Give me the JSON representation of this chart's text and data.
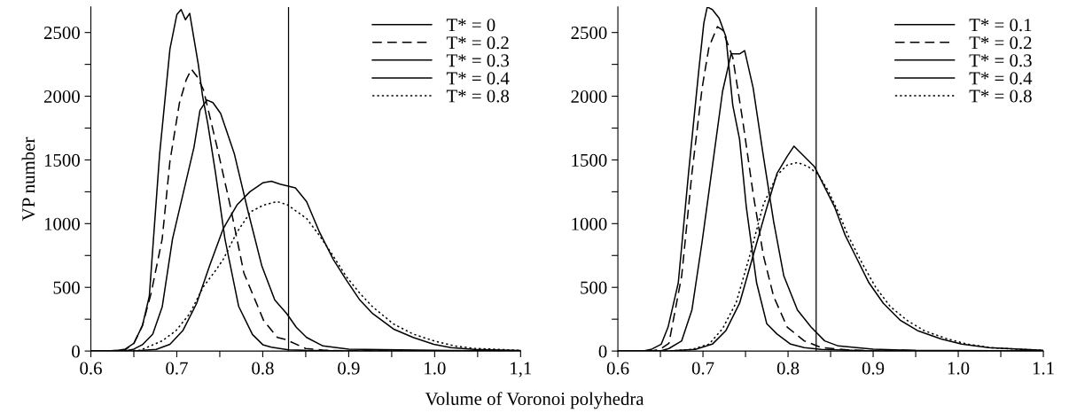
{
  "chart_data": [
    {
      "type": "line",
      "ylabel": "VP number",
      "xlabel": "Volume of Voronoi polyhedra",
      "xlim": [
        0.6,
        1.1
      ],
      "ylim": [
        0,
        2700
      ],
      "xticks": [
        0.6,
        {
          "value": 0.65,
          "label": null
        },
        0.7,
        {
          "value": 0.75,
          "label": null
        },
        0.8,
        {
          "value": 0.85,
          "label": null
        },
        0.9,
        {
          "value": 0.95,
          "label": null
        },
        {
          "value": 1.0,
          "label": "1.0"
        },
        {
          "value": 1.05,
          "label": null
        },
        {
          "value": 1.1,
          "label": "1,1"
        }
      ],
      "yticks": [
        0,
        {
          "value": 250,
          "label": null
        },
        500,
        {
          "value": 750,
          "label": null
        },
        1000,
        {
          "value": 1250,
          "label": null
        },
        1500,
        {
          "value": 1750,
          "label": null
        },
        2000,
        {
          "value": 2250,
          "label": null
        },
        2500
      ],
      "legend": "top right",
      "grid": false,
      "ref_lines": [
        {
          "axis": "x",
          "value": 0.83,
          "color": "#000000"
        }
      ],
      "series": [
        {
          "name": "T* = 0",
          "color": "#000000",
          "line_style": "solid",
          "x": [
            0.6,
            0.62,
            0.63,
            0.64,
            0.65,
            0.66,
            0.668,
            0.68,
            0.692,
            0.7,
            0.705,
            0.71,
            0.715,
            0.72,
            0.725,
            0.73,
            0.736,
            0.745,
            0.756,
            0.772,
            0.788,
            0.8,
            0.81,
            0.82,
            0.83,
            0.85,
            0.9,
            1.1
          ],
          "values": [
            0,
            0,
            5,
            15,
            60,
            200,
            430,
            1546,
            2370,
            2640,
            2680,
            2600,
            2650,
            2450,
            2250,
            2000,
            1786,
            1400,
            880,
            350,
            130,
            50,
            30,
            20,
            10,
            5,
            0,
            0
          ]
        },
        {
          "name": "T* = 0.2",
          "color": "#000000",
          "line_style": "dashed",
          "x": [
            0.6,
            0.63,
            0.64,
            0.65,
            0.66,
            0.67,
            0.683,
            0.692,
            0.703,
            0.711,
            0.717,
            0.724,
            0.731,
            0.746,
            0.762,
            0.778,
            0.801,
            0.817,
            0.827,
            0.85,
            0.87,
            0.9,
            1.1
          ],
          "values": [
            0,
            0,
            10,
            60,
            200,
            450,
            880,
            1490,
            1945,
            2130,
            2212,
            2150,
            2050,
            1625,
            1146,
            613,
            240,
            107,
            90,
            20,
            8,
            0,
            0
          ]
        },
        {
          "name": "T* = 0.3",
          "color": "#000000",
          "line_style": "solid",
          "x": [
            0.6,
            0.64,
            0.65,
            0.66,
            0.672,
            0.683,
            0.695,
            0.707,
            0.72,
            0.727,
            0.735,
            0.742,
            0.751,
            0.767,
            0.783,
            0.799,
            0.814,
            0.828,
            0.839,
            0.851,
            0.87,
            0.9,
            1.0,
            1.1
          ],
          "values": [
            0,
            0,
            15,
            50,
            133,
            346,
            880,
            1226,
            1600,
            1890,
            1970,
            1950,
            1865,
            1546,
            1093,
            666,
            400,
            293,
            187,
            107,
            40,
            15,
            5,
            0
          ]
        },
        {
          "name": "T* = 0.4",
          "color": "#000000",
          "line_style": "solid",
          "x": [
            0.6,
            0.65,
            0.676,
            0.692,
            0.707,
            0.723,
            0.738,
            0.754,
            0.77,
            0.785,
            0.8,
            0.81,
            0.82,
            0.838,
            0.851,
            0.866,
            0.882,
            0.897,
            0.913,
            0.928,
            0.952,
            0.975,
            0.999,
            1.019,
            1.046,
            1.1
          ],
          "values": [
            0,
            0,
            13,
            53,
            160,
            373,
            666,
            960,
            1146,
            1250,
            1320,
            1333,
            1310,
            1280,
            1173,
            933,
            720,
            560,
            400,
            293,
            173,
            107,
            53,
            27,
            13,
            5
          ]
        },
        {
          "name": "T* = 0.8",
          "color": "#000000",
          "line_style": "dotted",
          "x": [
            0.6,
            0.657,
            0.683,
            0.699,
            0.715,
            0.731,
            0.746,
            0.754,
            0.77,
            0.786,
            0.801,
            0.817,
            0.829,
            0.851,
            0.866,
            0.882,
            0.897,
            0.913,
            0.928,
            0.952,
            0.975,
            0.999,
            1.023,
            1.046,
            1.1
          ],
          "values": [
            0,
            5,
            80,
            160,
            293,
            506,
            640,
            720,
            933,
            1093,
            1146,
            1173,
            1146,
            1040,
            906,
            746,
            586,
            453,
            346,
            213,
            133,
            80,
            40,
            21,
            5
          ]
        }
      ]
    },
    {
      "type": "line",
      "xlim": [
        0.6,
        1.1
      ],
      "ylim": [
        0,
        2700
      ],
      "xticks": [
        0.6,
        {
          "value": 0.65,
          "label": null
        },
        0.7,
        {
          "value": 0.75,
          "label": null
        },
        0.8,
        {
          "value": 0.85,
          "label": null
        },
        0.9,
        {
          "value": 0.95,
          "label": null
        },
        {
          "value": 1.0,
          "label": "1.0"
        },
        {
          "value": 1.05,
          "label": null
        },
        1.1
      ],
      "yticks": [
        0,
        {
          "value": 250,
          "label": null
        },
        500,
        {
          "value": 750,
          "label": null
        },
        1000,
        {
          "value": 1250,
          "label": null
        },
        1500,
        {
          "value": 1750,
          "label": null
        },
        2000,
        {
          "value": 2250,
          "label": null
        },
        2500
      ],
      "legend": "top right",
      "grid": false,
      "ref_lines": [
        {
          "axis": "x",
          "value": 0.833,
          "color": "#000000"
        }
      ],
      "series": [
        {
          "name": "T* = 0.1",
          "color": "#000000",
          "line_style": "solid",
          "x": [
            0.6,
            0.63,
            0.64,
            0.651,
            0.659,
            0.671,
            0.683,
            0.695,
            0.701,
            0.705,
            0.711,
            0.719,
            0.727,
            0.735,
            0.743,
            0.751,
            0.763,
            0.775,
            0.787,
            0.803,
            0.819,
            0.839,
            0.9,
            1.1
          ],
          "values": [
            0,
            0,
            15,
            54,
            188,
            536,
            1394,
            2198,
            2573,
            2700,
            2680,
            2613,
            2466,
            1930,
            1662,
            1126,
            536,
            214,
            134,
            54,
            27,
            13,
            0,
            0
          ]
        },
        {
          "name": "T* = 0.2",
          "color": "#000000",
          "line_style": "dashed",
          "x": [
            0.6,
            0.64,
            0.65,
            0.66,
            0.675,
            0.687,
            0.699,
            0.707,
            0.717,
            0.723,
            0.735,
            0.747,
            0.759,
            0.771,
            0.783,
            0.799,
            0.819,
            0.839,
            0.87,
            0.9,
            1.1
          ],
          "values": [
            0,
            0,
            15,
            60,
            590,
            1394,
            2064,
            2385,
            2546,
            2520,
            2305,
            1796,
            1233,
            750,
            429,
            188,
            80,
            27,
            10,
            0,
            0
          ]
        },
        {
          "name": "T* = 0.3",
          "color": "#000000",
          "line_style": "solid",
          "x": [
            0.6,
            0.65,
            0.66,
            0.675,
            0.687,
            0.699,
            0.711,
            0.723,
            0.733,
            0.743,
            0.749,
            0.759,
            0.771,
            0.783,
            0.795,
            0.811,
            0.827,
            0.843,
            0.859,
            0.9,
            0.95,
            1.1
          ],
          "values": [
            0,
            0,
            20,
            80,
            322,
            858,
            1447,
            2037,
            2332,
            2332,
            2358,
            2064,
            1528,
            1018,
            590,
            322,
            188,
            80,
            40,
            15,
            5,
            0
          ]
        },
        {
          "name": "T* = 0.4",
          "color": "#000000",
          "line_style": "solid",
          "x": [
            0.6,
            0.66,
            0.691,
            0.711,
            0.727,
            0.743,
            0.759,
            0.775,
            0.787,
            0.799,
            0.807,
            0.819,
            0.831,
            0.843,
            0.855,
            0.867,
            0.879,
            0.895,
            0.912,
            0.932,
            0.952,
            0.98,
            1.004,
            1.036,
            1.1
          ],
          "values": [
            0,
            0,
            13,
            54,
            161,
            375,
            750,
            1126,
            1394,
            1528,
            1608,
            1528,
            1447,
            1286,
            1126,
            911,
            750,
            536,
            375,
            241,
            161,
            94,
            54,
            27,
            5
          ]
        },
        {
          "name": "T* = 0.8",
          "color": "#000000",
          "line_style": "dotted",
          "x": [
            0.6,
            0.66,
            0.687,
            0.707,
            0.723,
            0.739,
            0.755,
            0.771,
            0.787,
            0.799,
            0.811,
            0.823,
            0.835,
            0.847,
            0.859,
            0.871,
            0.887,
            0.903,
            0.92,
            0.94,
            0.96,
            0.985,
            1.01,
            1.04,
            1.1
          ],
          "values": [
            0,
            0,
            13,
            54,
            175,
            380,
            750,
            1150,
            1380,
            1460,
            1480,
            1450,
            1390,
            1260,
            1090,
            900,
            690,
            500,
            350,
            240,
            160,
            100,
            55,
            25,
            5
          ]
        }
      ]
    }
  ]
}
